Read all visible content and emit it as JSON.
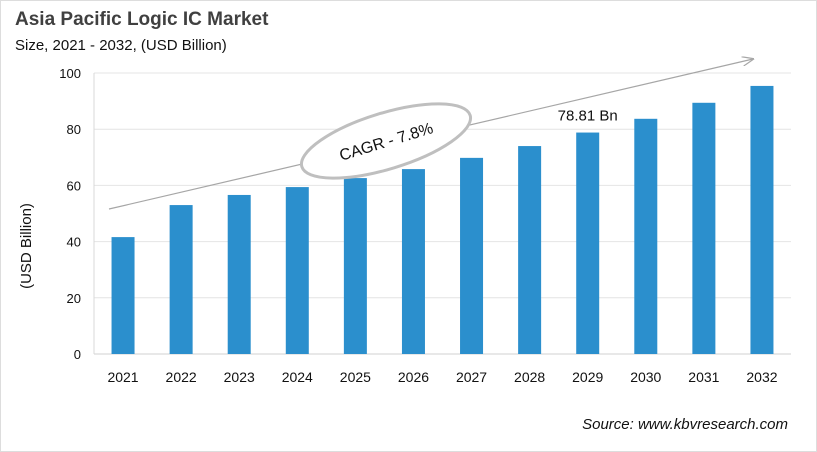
{
  "chart_data": {
    "type": "bar",
    "title": "Asia Pacific Logic IC Market",
    "subtitle": "Size, 2021 - 2032, (USD Billion)",
    "xlabel": "",
    "ylabel": "(USD Billion)",
    "ylim": [
      0,
      100
    ],
    "yticks": [
      0,
      20,
      40,
      60,
      80,
      100
    ],
    "grid": true,
    "categories": [
      "2021",
      "2022",
      "2023",
      "2024",
      "2025",
      "2026",
      "2027",
      "2028",
      "2029",
      "2030",
      "2031",
      "2032"
    ],
    "values": [
      41.6,
      53.0,
      56.6,
      59.4,
      62.6,
      65.8,
      69.8,
      74.0,
      78.81,
      83.7,
      89.4,
      95.4
    ],
    "bar_color": "#2b8fcd",
    "annotations": {
      "cagr": "CAGR - 7.8%",
      "data_label": "78.81 Bn",
      "data_label_category": "2029"
    },
    "source": "Source: www.kbvresearch.com"
  }
}
